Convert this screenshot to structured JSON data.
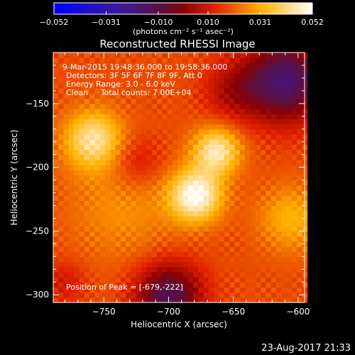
{
  "colorbar": {
    "ticks": [
      "-0.052",
      "-0.031",
      "-0.010",
      "0.010",
      "0.031",
      "0.052"
    ],
    "range": [
      -0.052,
      0.052
    ],
    "units": "(photons cm⁻² s⁻¹ asec⁻²)"
  },
  "timestamp": "23-Aug-2017 21:33",
  "chart_data": {
    "type": "heatmap",
    "title": "Reconstructed RHESSI Image",
    "xlabel": "Heliocentric X (arcsec)",
    "ylabel": "Heliocentric Y (arcsec)",
    "xlim": [
      -789,
      -595
    ],
    "ylim": [
      -306,
      -110
    ],
    "x_ticks": [
      -750,
      -700,
      -650,
      -600
    ],
    "y_ticks": [
      -150,
      -200,
      -250,
      -300
    ],
    "annotations": [
      "9-Mar-2015 19:48:36.000 to 19:58:36.000",
      "Detectors: 3F 5F 6F 7F 8F 9F, Att 0",
      "Energy Range: 3.0 - 6.0 keV",
      "Clean     Total counts: 7.00E+04"
    ],
    "peak_label": "Position of Peak = [-679,-222]",
    "background_level": 0.018,
    "sources": [
      {
        "x": -679,
        "y": -222,
        "sigma": 14,
        "amp": 0.034
      },
      {
        "x": -663,
        "y": -187,
        "sigma": 13,
        "amp": 0.028
      },
      {
        "x": -758,
        "y": -178,
        "sigma": 16,
        "amp": 0.026
      },
      {
        "x": -605,
        "y": -240,
        "sigma": 18,
        "amp": 0.014
      },
      {
        "x": -735,
        "y": -232,
        "sigma": 30,
        "amp": 0.009
      }
    ],
    "sinks": [
      {
        "x": -610,
        "y": -132,
        "sigma": 22,
        "amp": 0.034
      },
      {
        "x": -700,
        "y": -300,
        "sigma": 18,
        "amp": 0.03
      },
      {
        "x": -725,
        "y": -195,
        "sigma": 15,
        "amp": 0.01
      },
      {
        "x": -650,
        "y": -140,
        "sigma": 16,
        "amp": 0.012
      },
      {
        "x": -780,
        "y": -290,
        "sigma": 12,
        "amp": 0.008
      }
    ]
  }
}
